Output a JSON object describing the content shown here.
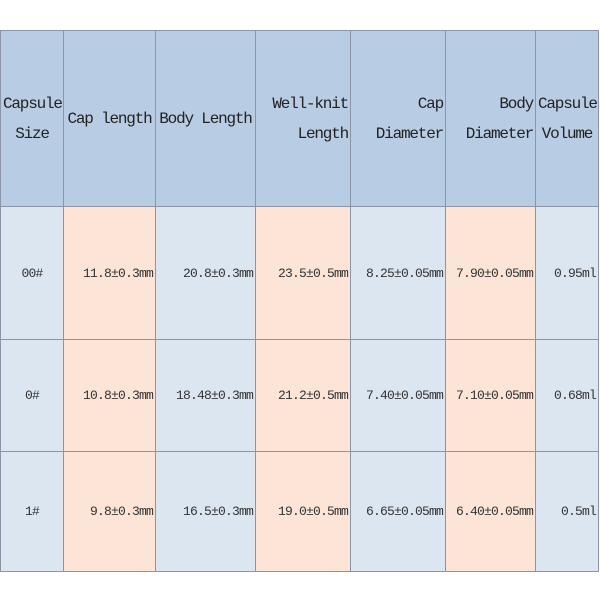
{
  "table": {
    "header": [
      "Capsule Size",
      "Cap length",
      "Body Length",
      "Well-knit Length",
      "Cap Diameter",
      "Body Diameter",
      "Capsule Volume"
    ],
    "rows": [
      [
        "00#",
        "11.8±0.3mm",
        "20.8±0.3mm",
        "23.5±0.5mm",
        "8.25±0.05mm",
        "7.90±0.05mm",
        "0.95ml"
      ],
      [
        "0#",
        "10.8±0.3mm",
        "18.48±0.3mm",
        "21.2±0.5mm",
        "7.40±0.05mm",
        "7.10±0.05mm",
        "0.68ml"
      ],
      [
        "1#",
        "9.8±0.3mm",
        "16.5±0.3mm",
        "19.0±0.5mm",
        "6.65±0.05mm",
        "6.40±0.05mm",
        "0.5ml"
      ]
    ]
  }
}
